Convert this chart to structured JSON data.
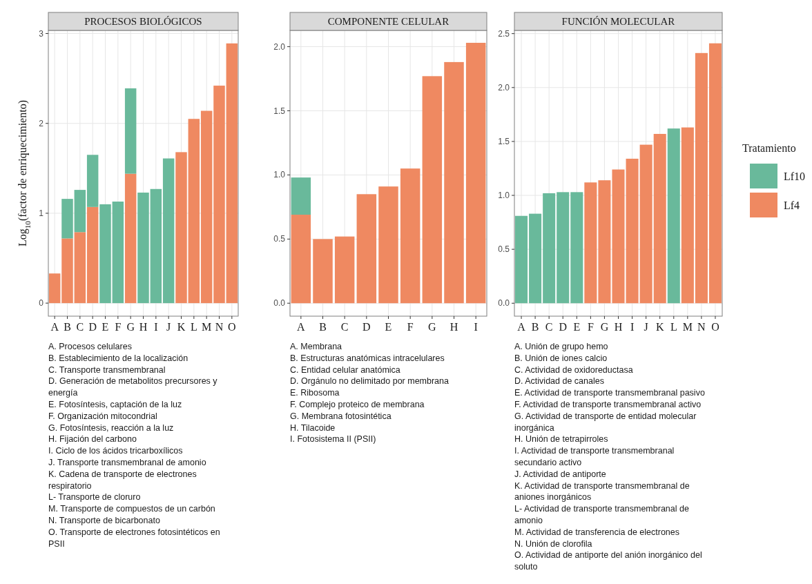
{
  "chart_data": [
    {
      "type": "bar",
      "title": "PROCESOS BIOLÓGICOS",
      "ylabel": "Log$_{10}$(factor de enriquecimiento)",
      "stacked": true,
      "grid": true,
      "legend": false,
      "categories": [
        "A",
        "B",
        "C",
        "D",
        "E",
        "F",
        "G",
        "H",
        "I",
        "J",
        "K",
        "L",
        "M",
        "N",
        "O"
      ],
      "series": [
        {
          "color": "#ef8961",
          "values": [
            0.33,
            0.72,
            0.79,
            1.07,
            null,
            null,
            1.44,
            null,
            null,
            null,
            1.68,
            2.05,
            2.14,
            2.42,
            2.89
          ]
        },
        {
          "color": "#69b99b",
          "values": [
            null,
            0.44,
            0.47,
            0.58,
            1.1,
            1.13,
            0.95,
            1.23,
            1.27,
            1.61,
            null,
            null,
            null,
            null,
            null
          ]
        }
      ],
      "ylim": [
        -0.145,
        3.035
      ],
      "yticks": [
        0,
        1,
        2,
        3
      ],
      "annotations": [
        "A. Procesos celulares",
        "B. Establecimiento de la localización",
        "C. Transporte transmembranal",
        "D. Generación de metabolitos precursores y energía",
        "E. Fotosíntesis, captación de la luz",
        "F. Organización mitocondrial",
        "G. Fotosíntesis, reacción a la luz",
        "H. Fijación del carbono",
        "I. Ciclo de los ácidos tricarboxílicos",
        "J. Transporte transmembranal de amonio",
        "K. Cadena de transporte de electrones respiratorio",
        "L- Transporte de cloruro",
        "M. Transporte de compuestos de un carbón",
        "N. Transporte de bicarbonato",
        "O. Transporte de electrones fotosintéticos en PSII"
      ]
    },
    {
      "type": "bar",
      "title": "COMPONENTE CELULAR",
      "stacked": true,
      "grid": true,
      "legend": false,
      "categories": [
        "A",
        "B",
        "C",
        "D",
        "E",
        "F",
        "G",
        "H",
        "I"
      ],
      "series": [
        {
          "color": "#ef8961",
          "values": [
            0.69,
            0.5,
            0.52,
            0.85,
            0.91,
            1.05,
            1.77,
            1.88,
            2.03
          ]
        },
        {
          "color": "#69b99b",
          "values": [
            0.29,
            null,
            null,
            null,
            null,
            null,
            null,
            null,
            null
          ]
        }
      ],
      "ylim": [
        -0.101,
        2.127
      ],
      "yticks": [
        {
          "value": 0,
          "label": "0.0"
        },
        {
          "value": 0.5,
          "label": "0.5"
        },
        {
          "value": 1,
          "label": "1.0"
        },
        {
          "value": 1.5,
          "label": "1.5"
        },
        {
          "value": 2,
          "label": "2.0"
        }
      ],
      "annotations": [
        "A. Membrana",
        "B. Estructuras anatómicas intracelulares",
        "C. Entidad celular anatómica",
        "D. Orgánulo no delimitado por membrana",
        "E. Ribosoma",
        "F. Complejo proteico de membrana",
        "G. Membrana fotosintética",
        "H. Tilacoide",
        "I. Fotosistema II (PSII)"
      ]
    },
    {
      "type": "bar",
      "title": "FUNCIÓN MOLECULAR",
      "stacked": true,
      "grid": true,
      "legend": "right",
      "legend_title": "Tratamiento",
      "categories": [
        "A",
        "B",
        "C",
        "D",
        "E",
        "F",
        "G",
        "H",
        "I",
        "J",
        "K",
        "L",
        "M",
        "N",
        "O"
      ],
      "series": [
        {
          "name": "Lf4",
          "color": "#ef8961",
          "values": [
            null,
            null,
            null,
            null,
            null,
            1.12,
            1.14,
            1.24,
            1.34,
            1.47,
            1.57,
            null,
            1.63,
            2.32,
            2.41
          ]
        },
        {
          "name": "Lf10",
          "color": "#69b99b",
          "values": [
            0.81,
            0.83,
            1.02,
            1.03,
            1.03,
            null,
            null,
            null,
            null,
            null,
            null,
            1.62,
            null,
            null,
            null
          ]
        }
      ],
      "ylim": [
        -0.12,
        2.53
      ],
      "yticks": [
        {
          "value": 0,
          "label": "0.0"
        },
        {
          "value": 0.5,
          "label": "0.5"
        },
        {
          "value": 1,
          "label": "1.0"
        },
        {
          "value": 1.5,
          "label": "1.5"
        },
        {
          "value": 2,
          "label": "2.0"
        },
        {
          "value": 2.5,
          "label": "2.5"
        }
      ],
      "annotations": [
        "A. Unión de grupo hemo",
        "B. Unión de iones calcio",
        "C. Actividad de oxidoreductasa",
        "D. Actividad de canales",
        "E. Actividad de transporte transmembranal pasivo",
        "F. Actividad de transporte transmembranal activo",
        "G. Actividad de transporte de entidad molecular inorgánica",
        "H. Unión de tetrapirroles",
        "I. Actividad de transporte transmembranal secundario activo",
        "J. Actividad de antiporte",
        "K. Actividad de transporte transmembranal de aniones inorgánicos",
        "L- Actividad de transporte transmembranal de amonio",
        "M. Actividad de transferencia de electrones",
        "N. Unión de clorofila",
        "O. Actividad de antiporte del anión inorgánico del soluto"
      ]
    }
  ]
}
